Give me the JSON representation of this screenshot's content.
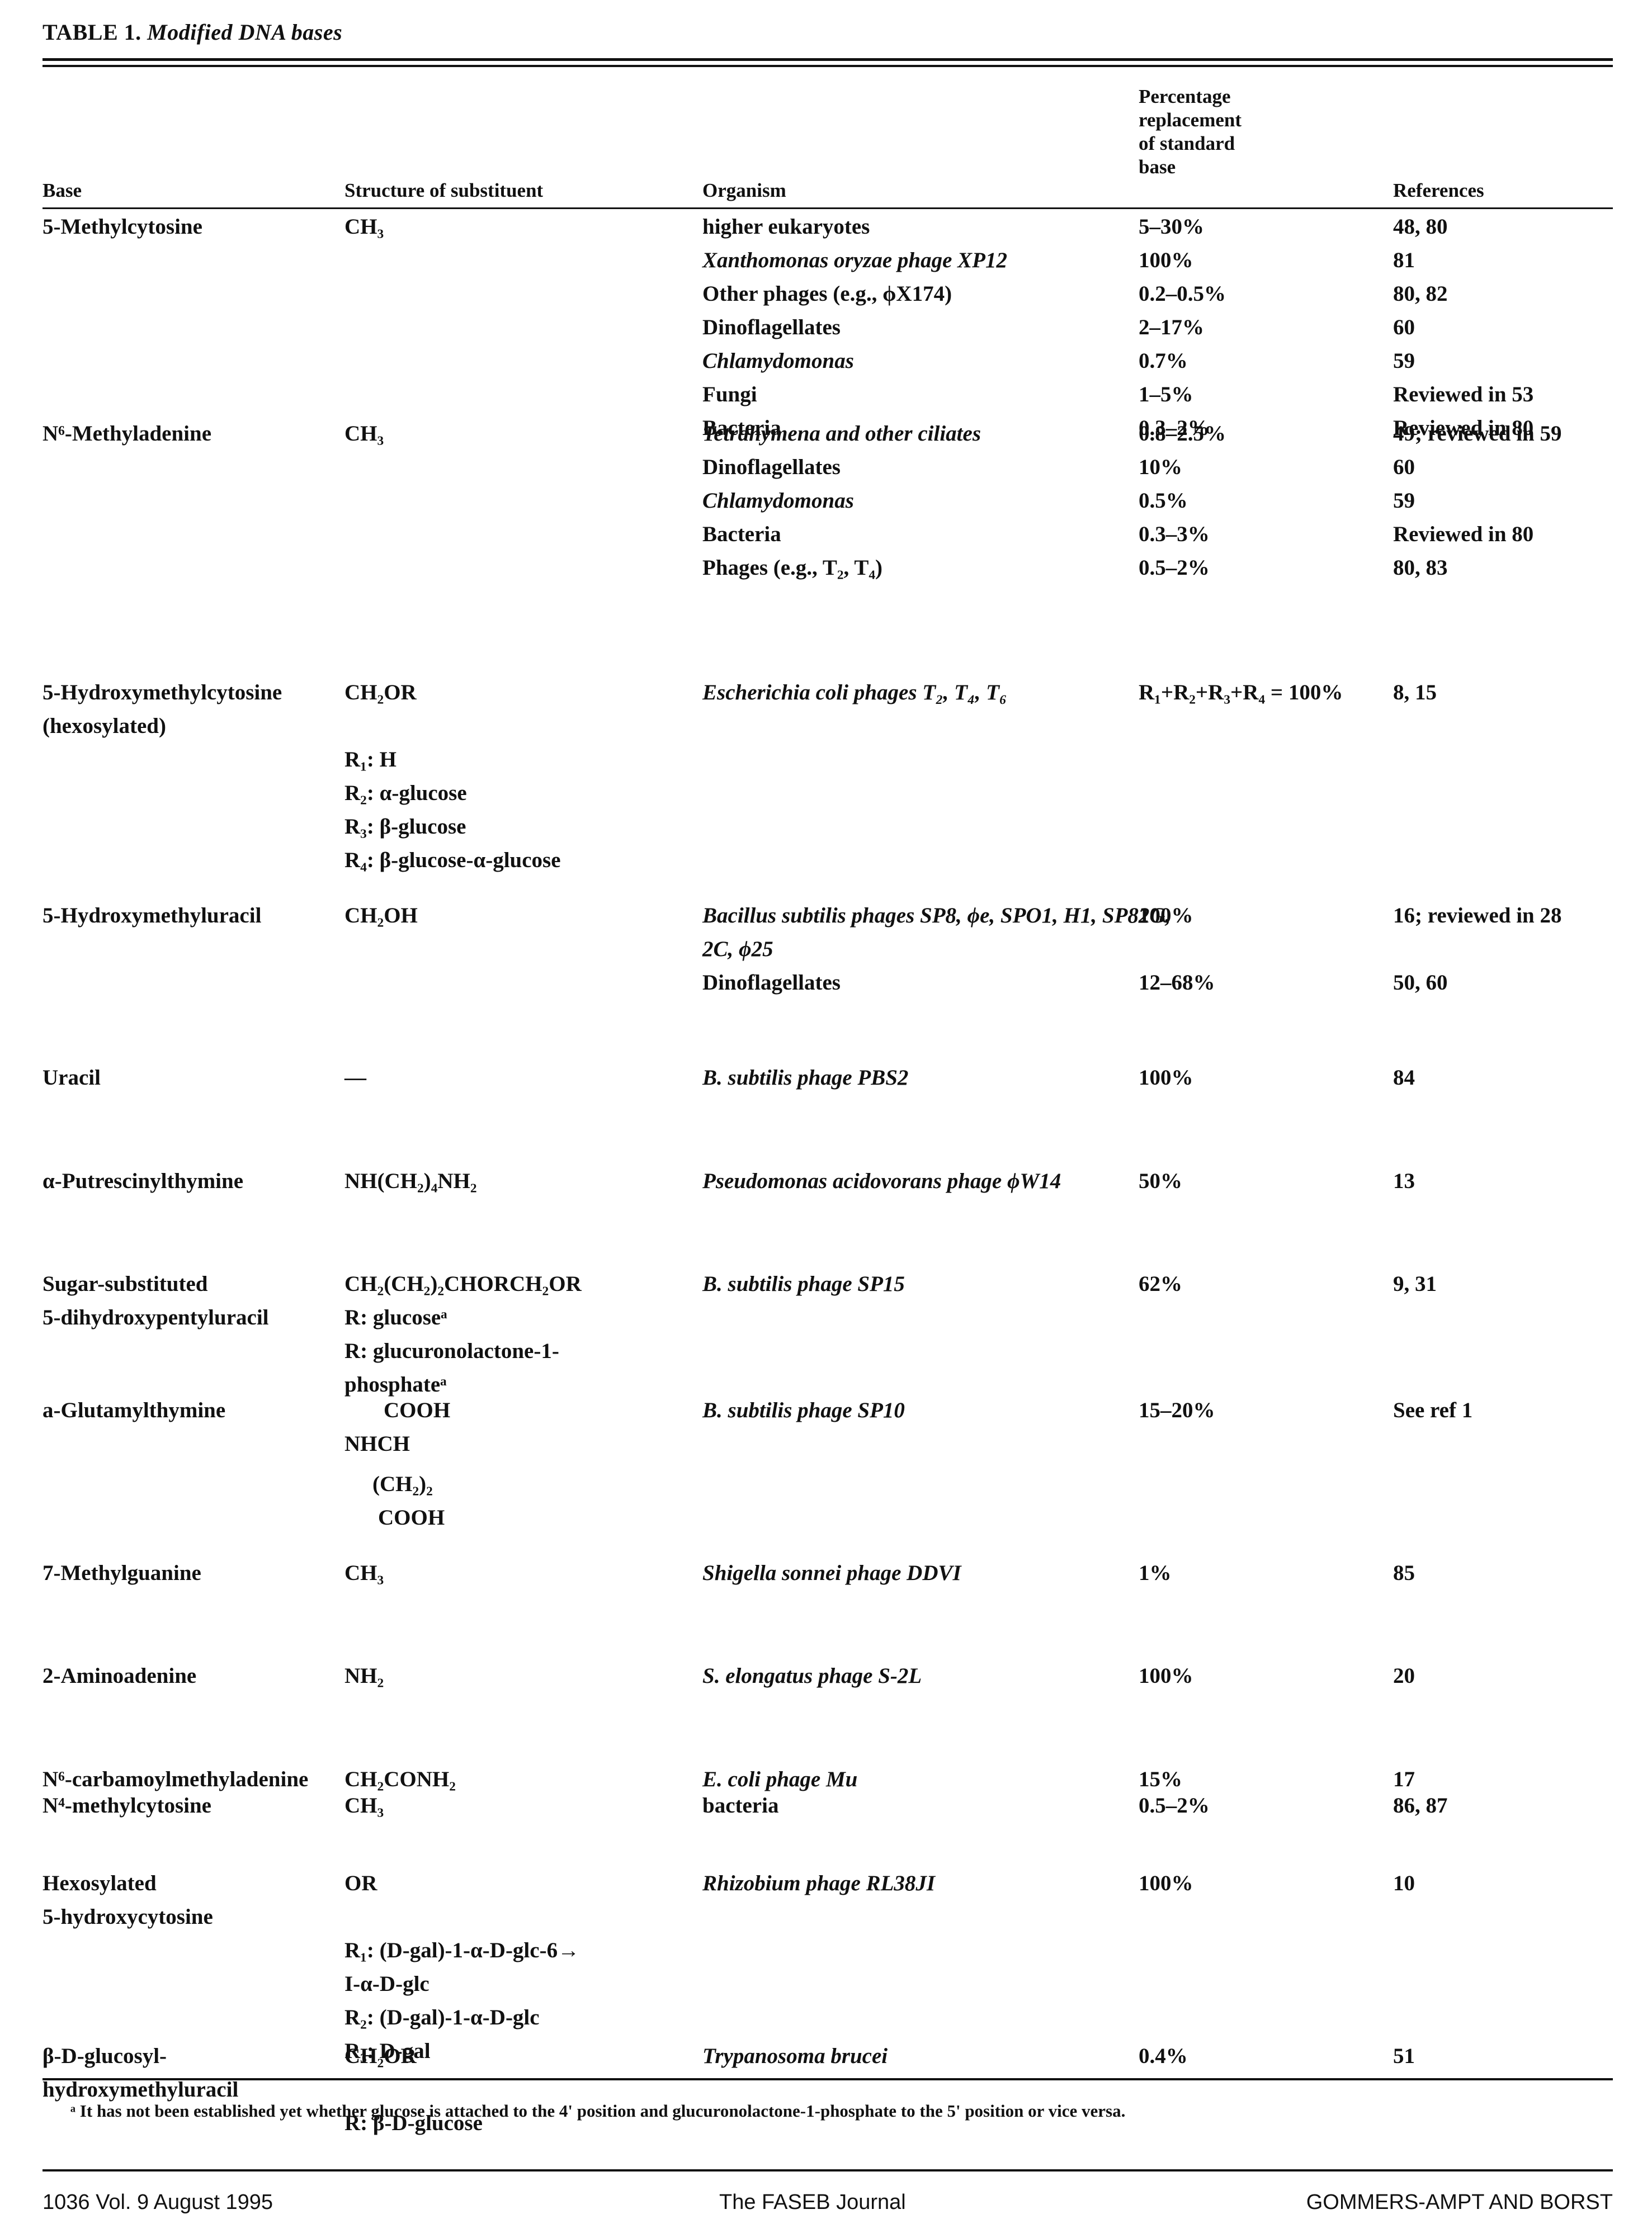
{
  "caption": {
    "label": "TABLE 1.",
    "title": "Modified DNA bases"
  },
  "headers": {
    "base": "Base",
    "structure": "Structure of substituent",
    "organism": "Organism",
    "percentage": [
      "Percentage",
      "replacement",
      "of standard",
      "base"
    ],
    "references": "References"
  },
  "rows": [
    {
      "base": [
        "5-Methylcytosine"
      ],
      "structure": [
        "CH₃"
      ],
      "organisms": [
        {
          "organism": "higher eukaryotes",
          "pct": "5–30%",
          "ref": "48, 80"
        },
        {
          "organism": "Xanthomonas oryzae phage XP12",
          "pct": "100%",
          "ref": "81"
        },
        {
          "organism": "Other phages (e.g., ϕX174)",
          "pct": "0.2–0.5%",
          "ref": "80, 82"
        },
        {
          "organism": "Dinoflagellates",
          "pct": "2–17%",
          "ref": "60"
        },
        {
          "organism": "Chlamydomonas",
          "pct": "0.7%",
          "ref": "59"
        },
        {
          "organism": "Fungi",
          "pct": "1–5%",
          "ref": "Reviewed in 53"
        },
        {
          "organism": "Bacteria",
          "pct": "0.3–2%",
          "ref": "Reviewed in 80"
        }
      ]
    },
    {
      "base": [
        "N⁶-Methyladenine"
      ],
      "structure": [
        "CH₃"
      ],
      "organisms": [
        {
          "organism": "Tetrahymena and other ciliates",
          "pct": "0.8–2.5%",
          "ref": "49; reviewed in 59"
        },
        {
          "organism": "Dinoflagellates",
          "pct": "10%",
          "ref": "60"
        },
        {
          "organism": "Chlamydomonas",
          "pct": "0.5%",
          "ref": "59"
        },
        {
          "organism": "Bacteria",
          "pct": "0.3–3%",
          "ref": "Reviewed in 80"
        },
        {
          "organism": "Phages (e.g., T₂, T₄)",
          "pct": "0.5–2%",
          "ref": "80, 83"
        }
      ]
    },
    {
      "base": [
        "5-Hydroxymethylcytosine",
        "(hexosylated)"
      ],
      "structure": [
        "CH₂OR",
        "",
        "R₁: H",
        "R₂: α-glucose",
        "R₃: β-glucose",
        "R₄: β-glucose-α-glucose"
      ],
      "organisms": [
        {
          "organism": "Escherichia coli phages T₂, T₄, T₆",
          "pct": "R₁+R₂+R₃+R₄ = 100%",
          "ref": "8, 15"
        }
      ]
    },
    {
      "base": [
        "5-Hydroxymethyluracil"
      ],
      "structure": [
        "CH₂OH"
      ],
      "organisms": [
        {
          "organism": "Bacillus subtilis phages SP8, ϕe, SPO1, H1, SP82G, 2C, ϕ25",
          "pct": "100%",
          "ref": "16; reviewed in 28"
        },
        {
          "organism": "Dinoflagellates",
          "pct": "12–68%",
          "ref": "50, 60"
        }
      ]
    },
    {
      "base": [
        "Uracil"
      ],
      "structure": [
        "—"
      ],
      "organisms": [
        {
          "organism": "B. subtilis phage PBS2",
          "pct": "100%",
          "ref": "84"
        }
      ]
    },
    {
      "base": [
        "α-Putrescinylthymine"
      ],
      "structure": [
        "NH(CH₂)₄NH₂"
      ],
      "organisms": [
        {
          "organism": "Pseudomonas acidovorans phage ϕW14",
          "pct": "50%",
          "ref": "13"
        }
      ]
    },
    {
      "base": [
        "Sugar-substituted",
        "5-dihydroxypentyluracil"
      ],
      "structure": [
        "CH₂(CH₂)₂CHORCH₂OR",
        "R: glucoseᵃ",
        "R: glucuronolactone-1-",
        "phosphateᵃ"
      ],
      "organisms": [
        {
          "organism": "B. subtilis phage SP15",
          "pct": "62%",
          "ref": "9, 31"
        }
      ]
    },
    {
      "base": [
        "a-Glutamylthymine"
      ],
      "structure": [
        "COOH",
        "NHCH",
        "(CH₂)₂",
        "COOH"
      ],
      "organisms": [
        {
          "organism": "B. subtilis phage SP10",
          "pct": "15–20%",
          "ref": "See ref 1"
        }
      ]
    },
    {
      "base": [
        "7-Methylguanine"
      ],
      "structure": [
        "CH₃"
      ],
      "organisms": [
        {
          "organism": "Shigella sonnei phage DDVI",
          "pct": "1%",
          "ref": "85"
        }
      ]
    },
    {
      "base": [
        "2-Aminoadenine"
      ],
      "structure": [
        "NH₂"
      ],
      "organisms": [
        {
          "organism": "S. elongatus phage S-2L",
          "pct": "100%",
          "ref": "20"
        }
      ]
    },
    {
      "base": [
        "N⁶-carbamoylmethyladenine"
      ],
      "structure": [
        "CH₂CONH₂"
      ],
      "organisms": [
        {
          "organism": "E. coli phage Mu",
          "pct": "15%",
          "ref": "17"
        }
      ]
    },
    {
      "base": [
        "N⁴-methylcytosine"
      ],
      "structure": [
        "CH₃"
      ],
      "organisms": [
        {
          "organism": "bacteria",
          "pct": "0.5–2%",
          "ref": "86, 87"
        }
      ]
    },
    {
      "base": [
        "Hexosylated",
        "5-hydroxycytosine"
      ],
      "structure": [
        "OR",
        "",
        "R₁: (D-gal)-1-α-D-glc-6→",
        "I-α-D-glc",
        "R₂: (D-gal)-1-α-D-glc",
        "R₃: D-gal"
      ],
      "organisms": [
        {
          "organism": "Rhizobium phage RL38JI",
          "pct": "100%",
          "ref": "10"
        }
      ]
    },
    {
      "base": [
        "β-D-glucosyl-",
        "hydroxymethyluracil"
      ],
      "structure": [
        "CH₂OR",
        "",
        "R: β-D-glucose"
      ],
      "organisms": [
        {
          "organism": "Trypanosoma brucei",
          "pct": "0.4%",
          "ref": "51"
        }
      ]
    }
  ],
  "footnote": "ᵃ It has not been established yet whether glucose is attached to the 4' position and glucuronolactone-1-phosphate to the 5' position or vice versa.",
  "footer": {
    "page_info": "1036   Vol. 9 August 1995",
    "journal": "The FASEB Journal",
    "authors": "GOMMERS-AMPT AND BORST"
  }
}
